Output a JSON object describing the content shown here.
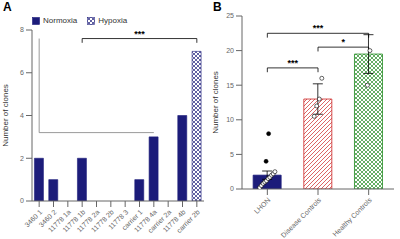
{
  "chart_data": [
    {
      "type": "bar",
      "title": "A",
      "categories": [
        "3460 1",
        "3460 2",
        "11778 1a",
        "11778 1b",
        "11778 2a",
        "11778 2b",
        "11778 3",
        "carrier 1",
        "11778 4a",
        "carrier 2a",
        "11778 4b",
        "carrier 2b"
      ],
      "series": [
        {
          "name": "Normoxia",
          "color": "#1c1c7a",
          "values": [
            2,
            1,
            0,
            2,
            0,
            0,
            0,
            1,
            3,
            0,
            4,
            0
          ]
        },
        {
          "name": "Hypoxia",
          "color": "#1c1c7a",
          "values": [
            0,
            0,
            0,
            0,
            0,
            0,
            0,
            0,
            0,
            0,
            0,
            7
          ]
        }
      ],
      "ylabel": "Number of clones",
      "ylim": [
        0,
        8
      ],
      "yticks": [
        0,
        2,
        4,
        6,
        8
      ],
      "legend": "upper left",
      "grid": false,
      "annotations": [
        {
          "text": "***",
          "x0": "11778 1b",
          "x1": "carrier 2b",
          "y": 7.6
        }
      ],
      "lines": [
        {
          "color": "gray",
          "x": [
            "11778 4a",
            "3460 1",
            "3460 1"
          ],
          "y": [
            3.2,
            3.2,
            7.6
          ]
        }
      ]
    },
    {
      "type": "bar",
      "title": "B",
      "categories": [
        "LHON",
        "Disease Controls",
        "Healthy Controls"
      ],
      "values": [
        2.0,
        13.0,
        19.5
      ],
      "errors": [
        0.6,
        2.2,
        2.8
      ],
      "colors": [
        "#1c1c7a",
        "#cc2222",
        "#228b22"
      ],
      "ylabel": "Number of clones",
      "ylim": [
        0,
        25
      ],
      "yticks": [
        0,
        5,
        10,
        15,
        20,
        25
      ],
      "grid": false,
      "points": [
        {
          "category": "LHON",
          "marker": "filled",
          "values": [
            4.0,
            8.0
          ]
        },
        {
          "category": "LHON",
          "marker": "open",
          "values": [
            0.2,
            0.5,
            0.8,
            1.0,
            1.2,
            1.5,
            1.7,
            2.0,
            2.2,
            2.5
          ]
        },
        {
          "category": "Disease Controls",
          "marker": "open",
          "values": [
            10.5,
            12.0,
            13.0,
            16.0
          ]
        },
        {
          "category": "Healthy Controls",
          "marker": "open",
          "values": [
            15.0,
            20.0
          ]
        }
      ],
      "annotations": [
        {
          "text": "***",
          "x0": "LHON",
          "x1": "Disease Controls",
          "y": 17.5
        },
        {
          "text": "***",
          "x0": "LHON",
          "x1": "Healthy Controls",
          "y": 22.5
        },
        {
          "text": "*",
          "x0": "Disease Controls",
          "x1": "Healthy Controls",
          "y": 20.5
        }
      ]
    }
  ]
}
